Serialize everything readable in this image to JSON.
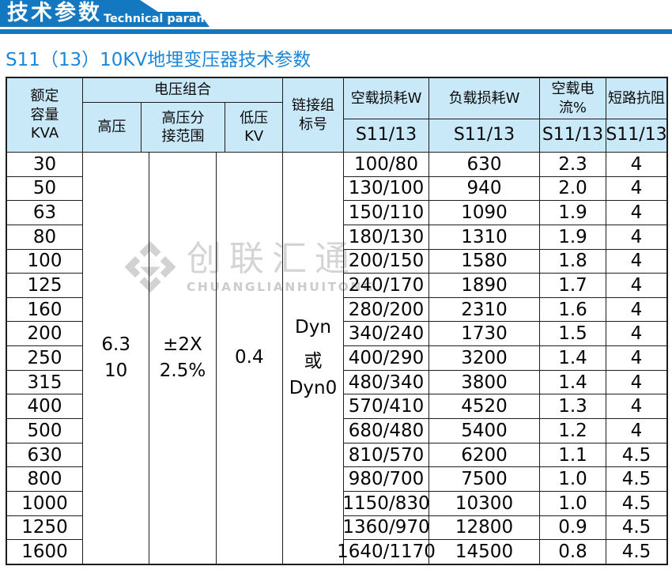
{
  "banner": {
    "title_cn": "技术参数",
    "title_en": "Technical parameter"
  },
  "subtitle": "S11（13）10KV地埋变压器技术参数",
  "colors": {
    "banner_blue": "#1378c0",
    "subtitle_blue": "#1b87d9",
    "header_cell_bg": "#c9e8f8",
    "table_border": "#1d1d1d",
    "watermark_gray": "#d4d4d4"
  },
  "watermark": {
    "logo_icon": "diamond-brand-logo",
    "name_cn": "创联汇通",
    "name_en": "CHUANGLIANHUITONG"
  },
  "table": {
    "headers": {
      "capacity_lines": [
        "额定",
        "容量",
        "KVA"
      ],
      "voltage_group": "电压组合",
      "hv": "高压",
      "hv_tap_lines": [
        "高压分",
        "接范围"
      ],
      "lv_lines": [
        "低压",
        "KV"
      ],
      "vector_lines": [
        "链接组",
        "标号"
      ],
      "no_load_loss": "空载损耗W",
      "load_loss": "负载损耗W",
      "no_load_current": "空载电流%",
      "impedance": "短路抗阻",
      "series": "S11/13"
    },
    "merged": {
      "hv_lines": [
        "6.3",
        "10"
      ],
      "hv_tap_lines": [
        "±2X",
        "2.5%"
      ],
      "lv": "0.4",
      "vector_lines": [
        "Dyn",
        "或",
        "Dyn0"
      ]
    },
    "rows": [
      {
        "capacity": "30",
        "no_load_loss": "100/80",
        "load_loss": "630",
        "no_load_current": "2.3",
        "impedance": "4"
      },
      {
        "capacity": "50",
        "no_load_loss": "130/100",
        "load_loss": "940",
        "no_load_current": "2.0",
        "impedance": "4"
      },
      {
        "capacity": "63",
        "no_load_loss": "150/110",
        "load_loss": "1090",
        "no_load_current": "1.9",
        "impedance": "4"
      },
      {
        "capacity": "80",
        "no_load_loss": "180/130",
        "load_loss": "1310",
        "no_load_current": "1.9",
        "impedance": "4"
      },
      {
        "capacity": "100",
        "no_load_loss": "200/150",
        "load_loss": "1580",
        "no_load_current": "1.8",
        "impedance": "4"
      },
      {
        "capacity": "125",
        "no_load_loss": "240/170",
        "load_loss": "1890",
        "no_load_current": "1.7",
        "impedance": "4"
      },
      {
        "capacity": "160",
        "no_load_loss": "280/200",
        "load_loss": "2310",
        "no_load_current": "1.6",
        "impedance": "4"
      },
      {
        "capacity": "200",
        "no_load_loss": "340/240",
        "load_loss": "1730",
        "no_load_current": "1.5",
        "impedance": "4"
      },
      {
        "capacity": "250",
        "no_load_loss": "400/290",
        "load_loss": "3200",
        "no_load_current": "1.4",
        "impedance": "4"
      },
      {
        "capacity": "315",
        "no_load_loss": "480/340",
        "load_loss": "3800",
        "no_load_current": "1.4",
        "impedance": "4"
      },
      {
        "capacity": "400",
        "no_load_loss": "570/410",
        "load_loss": "4520",
        "no_load_current": "1.3",
        "impedance": "4"
      },
      {
        "capacity": "500",
        "no_load_loss": "680/480",
        "load_loss": "5400",
        "no_load_current": "1.2",
        "impedance": "4"
      },
      {
        "capacity": "630",
        "no_load_loss": "810/570",
        "load_loss": "6200",
        "no_load_current": "1.1",
        "impedance": "4.5"
      },
      {
        "capacity": "800",
        "no_load_loss": "980/700",
        "load_loss": "7500",
        "no_load_current": "1.0",
        "impedance": "4.5"
      },
      {
        "capacity": "1000",
        "no_load_loss": "1150/830",
        "load_loss": "10300",
        "no_load_current": "1.0",
        "impedance": "4.5"
      },
      {
        "capacity": "1250",
        "no_load_loss": "1360/970",
        "load_loss": "12800",
        "no_load_current": "0.9",
        "impedance": "4.5"
      },
      {
        "capacity": "1600",
        "no_load_loss": "1640/1170",
        "load_loss": "14500",
        "no_load_current": "0.8",
        "impedance": "4.5"
      }
    ]
  }
}
